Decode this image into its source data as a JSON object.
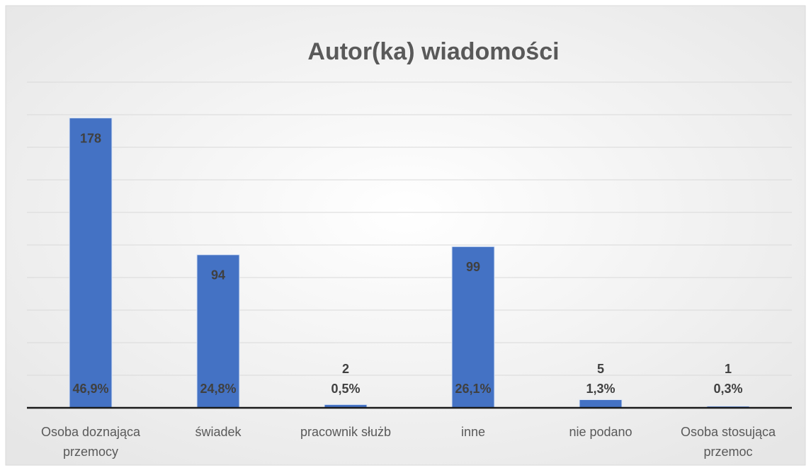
{
  "chart_data": {
    "type": "bar",
    "title": "Autor(ka) wiadomości",
    "categories": [
      "Osoba doznająca przemocy",
      "świadek",
      "pracownik służb",
      "inne",
      "nie podano",
      "Osoba stosująca przemoc"
    ],
    "values": [
      178,
      94,
      2,
      99,
      5,
      1
    ],
    "percentages": [
      46.9,
      24.8,
      0.5,
      26.1,
      1.3,
      0.3
    ],
    "percentage_labels": [
      "46,9%",
      "24,8%",
      "0,5%",
      "26,1%",
      "1,3%",
      "0,3%"
    ],
    "color": "#4472c4",
    "ylim": [
      0,
      200
    ],
    "yticks": [
      0,
      20,
      40,
      60,
      80,
      100,
      120,
      140,
      160,
      180,
      200
    ],
    "grid": true
  }
}
